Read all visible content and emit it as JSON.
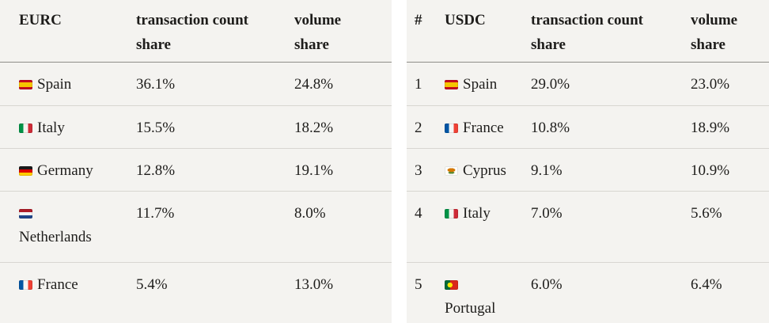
{
  "colors": {
    "page_background": "#ffffff",
    "table_background": "#f4f3f0",
    "text": "#1e1d1b",
    "header_divider": "#8f8d89",
    "row_divider": "#d8d6d1"
  },
  "chart_data": [
    {
      "type": "table",
      "name": "EURC country share table",
      "columns": [
        {
          "label": "EURC"
        },
        {
          "label": "transaction count share"
        },
        {
          "label": "volume share"
        }
      ],
      "rows": [
        {
          "country": "Spain",
          "flag": "spain-flag-icon",
          "transaction_count_share": "36.1%",
          "volume_share": "24.8%"
        },
        {
          "country": "Italy",
          "flag": "italy-flag-icon",
          "transaction_count_share": "15.5%",
          "volume_share": "18.2%"
        },
        {
          "country": "Germany",
          "flag": "germany-flag-icon",
          "transaction_count_share": "12.8%",
          "volume_share": "19.1%"
        },
        {
          "country": "Netherlands",
          "flag": "netherlands-flag-icon",
          "transaction_count_share": "11.7%",
          "volume_share": "8.0%"
        },
        {
          "country": "France",
          "flag": "france-flag-icon",
          "transaction_count_share": "5.4%",
          "volume_share": "13.0%"
        }
      ]
    },
    {
      "type": "table",
      "name": "USDC country share table",
      "columns": [
        {
          "label": "#"
        },
        {
          "label": "USDC"
        },
        {
          "label": "transaction count share"
        },
        {
          "label": "volume share"
        }
      ],
      "rows": [
        {
          "rank": "1",
          "country": "Spain",
          "flag": "spain-flag-icon",
          "transaction_count_share": "29.0%",
          "volume_share": "23.0%"
        },
        {
          "rank": "2",
          "country": "France",
          "flag": "france-flag-icon",
          "transaction_count_share": "10.8%",
          "volume_share": "18.9%"
        },
        {
          "rank": "3",
          "country": "Cyprus",
          "flag": "cyprus-flag-icon",
          "transaction_count_share": "9.1%",
          "volume_share": "10.9%"
        },
        {
          "rank": "4",
          "country": "Italy",
          "flag": "italy-flag-icon",
          "transaction_count_share": "7.0%",
          "volume_share": "5.6%"
        },
        {
          "rank": "5",
          "country": "Portugal",
          "flag": "portugal-flag-icon",
          "transaction_count_share": "6.0%",
          "volume_share": "6.4%"
        }
      ]
    }
  ]
}
